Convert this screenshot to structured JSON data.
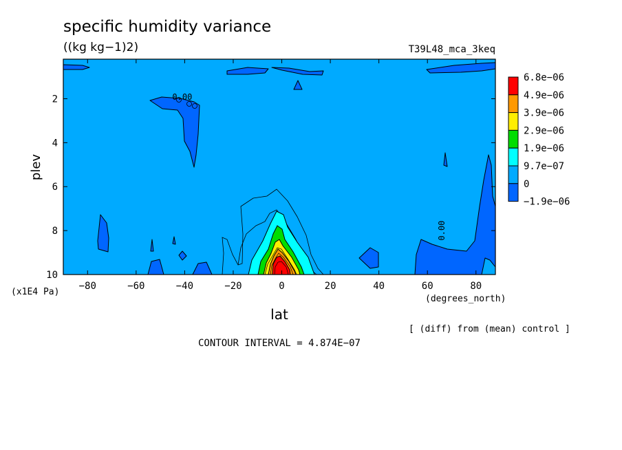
{
  "chart_data": {
    "type": "heatmap",
    "title": "specific humidity variance",
    "subtitle": "((kg kg−1)2)",
    "run_label": "T39L48_mca_3keq",
    "xlabel": "lat",
    "x_units": "(degrees_north)",
    "ylabel": "plev",
    "y_units": "(x1E4 Pa)",
    "xlim": [
      -90,
      88
    ],
    "ylim": [
      10,
      0.2
    ],
    "x_ticks": [
      -80,
      -60,
      -40,
      -20,
      0,
      20,
      40,
      60,
      80
    ],
    "x_tick_labels": [
      "−80",
      "−60",
      "−40",
      "−20",
      "0",
      "20",
      "40",
      "60",
      "80"
    ],
    "y_ticks": [
      2,
      4,
      6,
      8,
      10
    ],
    "y_tick_labels": [
      "2",
      "4",
      "6",
      "8",
      "10"
    ],
    "colorbar": {
      "labels": [
        "6.8e−06",
        "4.9e−06",
        "3.9e−06",
        "2.9e−06",
        "1.9e−06",
        "9.7e−07",
        "0",
        "−1.9e−06"
      ],
      "colors": [
        "#ff0000",
        "#ff9900",
        "#ffee00",
        "#00dd00",
        "#00ffff",
        "#00aaff",
        "#0066ff"
      ]
    },
    "contour_labels": [
      {
        "text": "0.00",
        "lat": 67,
        "plev": 8.0,
        "rotate": true
      },
      {
        "text": "0.00",
        "lat": -41,
        "plev": 2.05,
        "rotate": false
      }
    ],
    "peak": {
      "lat": 0,
      "plev": 9.6,
      "value": "6.8e−06"
    },
    "footer_note": "[ (diff) from (mean) control ]",
    "contour_interval": "CONTOUR INTERVAL = 4.874E−07"
  }
}
